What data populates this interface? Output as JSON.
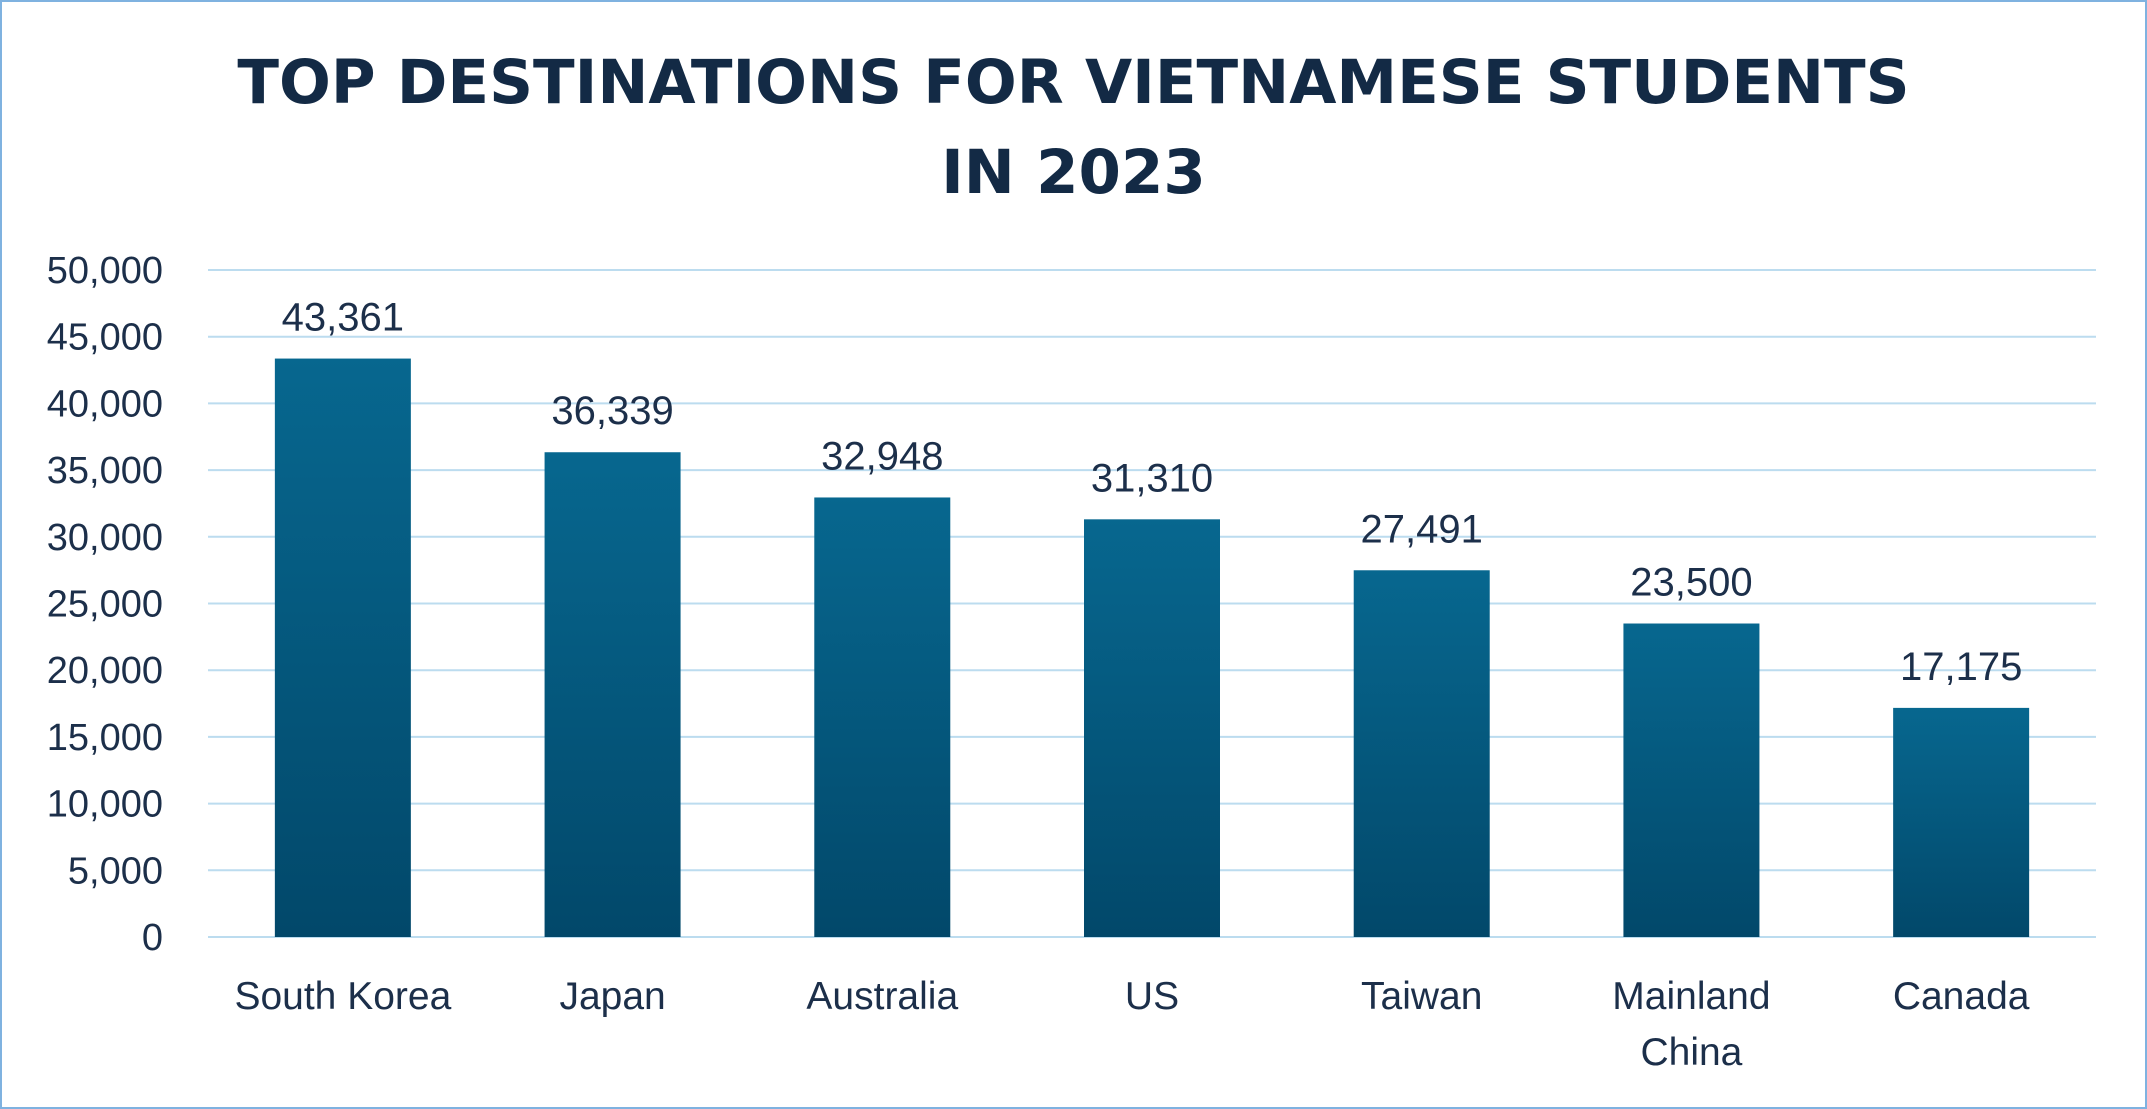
{
  "chart_data": {
    "type": "bar",
    "title": "TOP DESTINATIONS FOR VIETNAMESE STUDENTS IN 2023",
    "title_lines": [
      "TOP DESTINATIONS FOR VIETNAMESE STUDENTS",
      "IN 2023"
    ],
    "categories": [
      "South Korea",
      "Japan",
      "Australia",
      "US",
      "Taiwan",
      "Mainland China",
      "Canada"
    ],
    "category_label_lines": [
      [
        "South Korea"
      ],
      [
        "Japan"
      ],
      [
        "Australia"
      ],
      [
        "US"
      ],
      [
        "Taiwan"
      ],
      [
        "Mainland",
        "China"
      ],
      [
        "Canada"
      ]
    ],
    "values": [
      43361,
      36339,
      32948,
      31310,
      27491,
      23500,
      17175
    ],
    "data_labels": [
      "43,361",
      "36,339",
      "32,948",
      "31,310",
      "27,491",
      "23,500",
      "17,175"
    ],
    "ylim": [
      0,
      50000
    ],
    "yticks": [
      0,
      5000,
      10000,
      15000,
      20000,
      25000,
      30000,
      35000,
      40000,
      45000,
      50000
    ],
    "ytick_labels": [
      "0",
      "5,000",
      "10,000",
      "15,000",
      "20,000",
      "25,000",
      "30,000",
      "35,000",
      "40,000",
      "45,000",
      "50,000"
    ],
    "xlabel": "",
    "ylabel": "",
    "grid": true,
    "legend": "none",
    "colors": {
      "bar_top": "#07678f",
      "bar_bottom": "#02486a",
      "grid": "#bcdcef",
      "text": "#1c2f4a",
      "title": "#132a45",
      "border": "#7fb2e0"
    }
  }
}
